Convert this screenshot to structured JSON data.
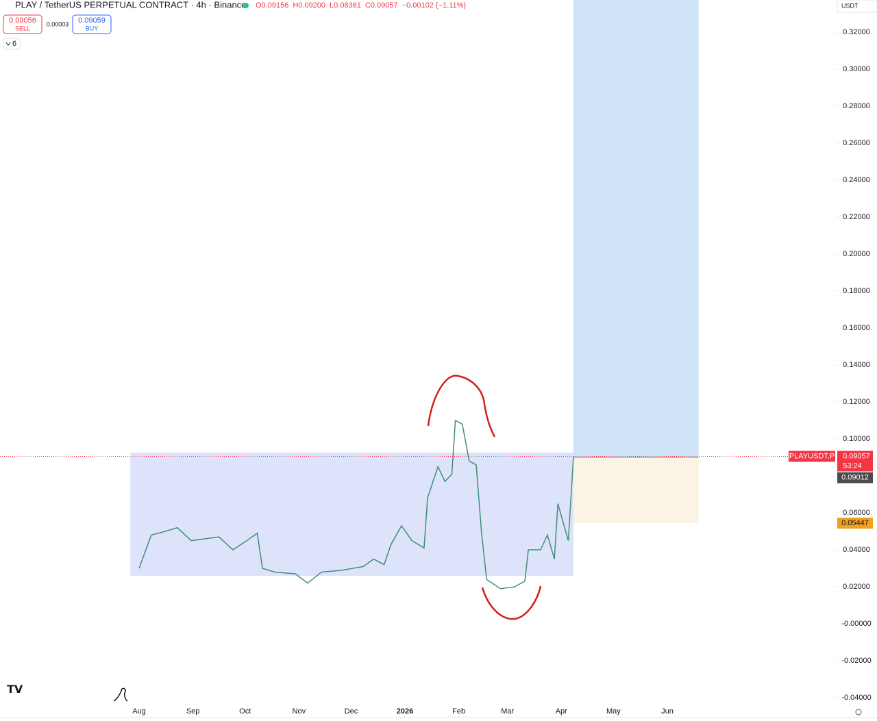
{
  "chart_data": {
    "type": "line",
    "title": "PLAY / TetherUS PERPETUAL CONTRACT · 4h · Binance",
    "ohlc": [
      "O0.09156",
      "H0.09200",
      "L0.08361",
      "C0.09057",
      "−0.00102 (−1.11%)"
    ],
    "sell": {
      "price": 0.09056,
      "label": "SELL"
    },
    "spread": 3e-05,
    "buy": {
      "price": 0.09059,
      "label": "BUY"
    },
    "indicator_count": 6,
    "currency": "USDT",
    "symbol_tag": "PLAYUSDT.P",
    "countdown": "53:24",
    "x": [
      0,
      7,
      15,
      22,
      30,
      38,
      46,
      54,
      62,
      68,
      71,
      78,
      90,
      97,
      105,
      117,
      129,
      135,
      141,
      145,
      151,
      157,
      164,
      166,
      172,
      176,
      180,
      182,
      186,
      190,
      194,
      197,
      200,
      208,
      216,
      222,
      224,
      231,
      235,
      239,
      241,
      247,
      250
    ],
    "series": [
      {
        "name": "PLAYUSDT.P",
        "color": "#3f8f76",
        "values": [
          0.03,
          0.048,
          0.05,
          0.052,
          0.045,
          0.046,
          0.047,
          0.04,
          0.045,
          0.049,
          0.03,
          0.028,
          0.027,
          0.022,
          0.028,
          0.029,
          0.031,
          0.035,
          0.032,
          0.043,
          0.053,
          0.045,
          0.041,
          0.068,
          0.085,
          0.077,
          0.081,
          0.11,
          0.108,
          0.088,
          0.086,
          0.05,
          0.024,
          0.019,
          0.02,
          0.023,
          0.04,
          0.04,
          0.048,
          0.035,
          0.065,
          0.045,
          0.09057
        ]
      }
    ],
    "range_box": {
      "x": [
        -5,
        250
      ],
      "y": [
        0.0259,
        0.0926
      ],
      "color": "#dde3fb"
    },
    "position": {
      "x": [
        250,
        322
      ],
      "entry": 0.09012,
      "stop": 0.05447,
      "target_color": "#cfe3f8",
      "stop_color": "#fbf3e4"
    },
    "xlim": [
      -80.05,
      401
    ],
    "ylim": [
      -0.0496,
      0.3374
    ],
    "xticks": [
      {
        "value": 0,
        "label": "Aug"
      },
      {
        "value": 31,
        "label": "Sep"
      },
      {
        "value": 61,
        "label": "Oct"
      },
      {
        "value": 92,
        "label": "Nov"
      },
      {
        "value": 122,
        "label": "Dec"
      },
      {
        "value": 153,
        "label": "2026"
      },
      {
        "value": 184,
        "label": "Feb"
      },
      {
        "value": 212,
        "label": "Mar"
      },
      {
        "value": 243,
        "label": "Apr"
      },
      {
        "value": 273,
        "label": "May"
      },
      {
        "value": 304,
        "label": "Jun"
      }
    ],
    "yticks": [
      {
        "value": -0.04,
        "label": "-0.04000"
      },
      {
        "value": -0.02,
        "label": "-0.02000"
      },
      {
        "value": 0,
        "label": "-0.00000"
      },
      {
        "value": 0.02,
        "label": "0.02000"
      },
      {
        "value": 0.04,
        "label": "0.04000"
      },
      {
        "value": 0.06,
        "label": "0.06000"
      },
      {
        "value": 0.1,
        "label": "0.10000"
      },
      {
        "value": 0.12,
        "label": "0.12000"
      },
      {
        "value": 0.14,
        "label": "0.14000"
      },
      {
        "value": 0.16,
        "label": "0.16000"
      },
      {
        "value": 0.18,
        "label": "0.18000"
      },
      {
        "value": 0.2,
        "label": "0.20000"
      },
      {
        "value": 0.22,
        "label": "0.22000"
      },
      {
        "value": 0.24,
        "label": "0.24000"
      },
      {
        "value": 0.26,
        "label": "0.26000"
      },
      {
        "value": 0.28,
        "label": "0.28000"
      },
      {
        "value": 0.3,
        "label": "0.30000"
      },
      {
        "value": 0.32,
        "label": "0.32000"
      }
    ]
  }
}
